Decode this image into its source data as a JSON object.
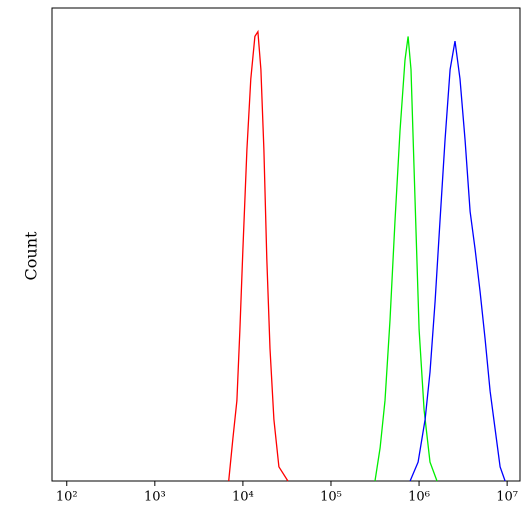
{
  "chart_data": {
    "type": "line",
    "y_label": "Count",
    "xscale": "log",
    "xlim": [
      68,
      14000000
    ],
    "ylim": [
      0,
      100
    ],
    "xticks": [
      {
        "value": 100,
        "label": "10²"
      },
      {
        "value": 1000,
        "label": "10³"
      },
      {
        "value": 10000,
        "label": "10⁴"
      },
      {
        "value": 100000,
        "label": "10⁵"
      },
      {
        "value": 1000000,
        "label": "10⁶"
      },
      {
        "value": 10000000,
        "label": "10⁷"
      }
    ],
    "series": [
      {
        "color": "#ff0000",
        "x": [
          6900,
          7700,
          8550,
          9250,
          10000,
          11100,
          12300,
          13700,
          14800,
          16000,
          17300,
          18700,
          20300,
          22500,
          25600,
          32400
        ],
        "values": [
          0,
          9,
          17,
          32,
          49,
          70,
          85,
          94,
          95,
          87,
          70,
          47,
          28,
          13,
          3,
          0
        ]
      },
      {
        "color": "#00ee00",
        "x": [
          316000,
          361000,
          411000,
          468000,
          533000,
          608000,
          693000,
          750000,
          811000,
          901000,
          1000000,
          1140000,
          1330000,
          1600000
        ],
        "values": [
          0,
          7,
          17,
          34,
          55,
          74,
          89,
          94,
          87,
          59,
          32,
          15,
          4,
          0
        ]
      },
      {
        "color": "#0000ff",
        "x": [
          791000,
          975000,
          1170000,
          1330000,
          1520000,
          1730000,
          1970000,
          2250000,
          2560000,
          2920000,
          3330000,
          3800000,
          4330000,
          4930000,
          5620000,
          6410000,
          7310000,
          8320000,
          9480000
        ],
        "values": [
          0,
          4,
          13,
          23,
          38,
          55,
          72,
          87,
          93,
          85,
          72,
          57,
          49,
          40,
          30,
          19,
          11,
          3,
          0
        ]
      }
    ]
  }
}
